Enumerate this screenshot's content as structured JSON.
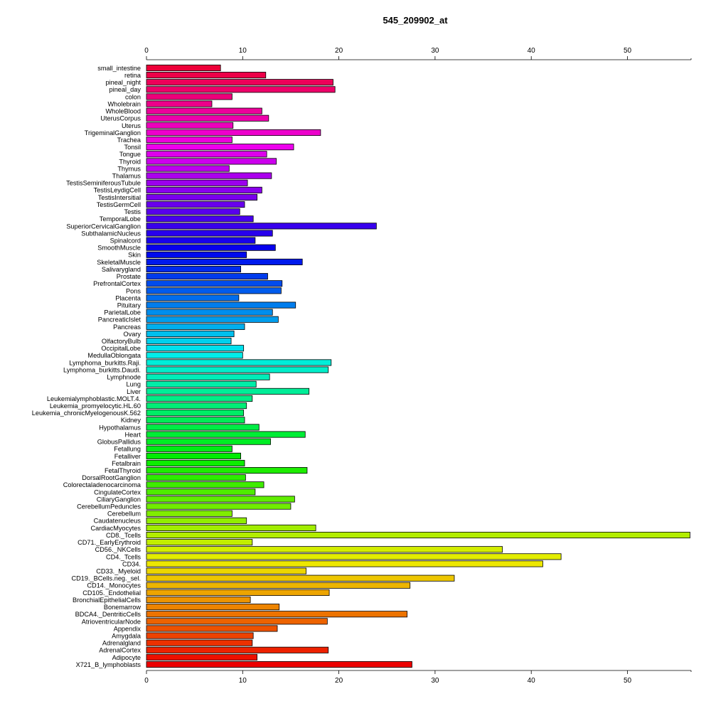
{
  "chart_data": {
    "type": "bar",
    "orientation": "horizontal",
    "title": "545_209902_at",
    "xlabel": "",
    "ylabel": "",
    "xlim": [
      0,
      56
    ],
    "x_ticks": [
      0,
      10,
      20,
      30,
      40,
      50
    ],
    "x_tick_labels": [
      "0",
      "10",
      "20",
      "30",
      "40",
      "50"
    ],
    "axes": [
      "top",
      "bottom"
    ],
    "grid": false,
    "legend": "none",
    "bar_outline_color": "#000000",
    "color_scheme": "rainbow (red → magenta → blue → cyan → green → yellow → orange → red, bottom to top reversed)",
    "categories": [
      "small_intestine",
      "retina",
      "pineal_night",
      "pineal_day",
      "colon",
      "Wholebrain",
      "WholeBlood",
      "UterusCorpus",
      "Uterus",
      "TrigeminalGanglion",
      "Trachea",
      "Tonsil",
      "Tongue",
      "Thyroid",
      "Thymus",
      "Thalamus",
      "TestisSeminiferousTubule",
      "TestisLeydigCell",
      "TestisIntersitial",
      "TestisGermCell",
      "Testis",
      "TemporalLobe",
      "SuperiorCervicalGanglion",
      "SubthalamicNucleus",
      "Spinalcord",
      "SmoothMuscle",
      "Skin",
      "SkeletalMuscle",
      "Salivarygland",
      "Prostate",
      "PrefrontalCortex",
      "Pons",
      "Placenta",
      "Pituitary",
      "ParietalLobe",
      "PancreaticIslet",
      "Pancreas",
      "Ovary",
      "OlfactoryBulb",
      "OccipitalLobe",
      "MedullaOblongata",
      "Lymphoma_burkitts.Raji.",
      "Lymphoma_burkitts.Daudi.",
      "Lymphnode",
      "Lung",
      "Liver",
      "Leukemialymphoblastic.MOLT.4.",
      "Leukemia_promyelocytic.HL.60",
      "Leukemia_chronicMyelogenousK.562",
      "Kidney",
      "Hypothalamus",
      "Heart",
      "GlobusPallidus",
      "Fetallung",
      "Fetalliver",
      "Fetalbrain",
      "FetalThyroid",
      "DorsalRootGanglion",
      "Colorectaladenocarcinoma",
      "CingulateCortex",
      "CiliaryGanglion",
      "CerebellumPeduncles",
      "Cerebellum",
      "Caudatenucleus",
      "CardiacMyocytes",
      "CD8._Tcells",
      "CD71._EarlyErythroid",
      "CD56._NKCells",
      "CD4._Tcells",
      "CD34.",
      "CD33._Myeloid",
      "CD19._BCells.neg._sel.",
      "CD14._Monocytes",
      "CD105._Endothelial",
      "BronchialEpithelialCells",
      "Bonemarrow",
      "BDCA4._DentriticCells",
      "AtrioventricularNode",
      "Appendix",
      "Amygdala",
      "Adrenalgland",
      "AdrenalCortex",
      "Adipocyte",
      "X721_B_lymphoblasts"
    ],
    "values": [
      7.7,
      12.4,
      19.4,
      19.6,
      8.9,
      6.8,
      12.0,
      12.7,
      9.0,
      18.1,
      8.9,
      15.3,
      12.5,
      13.5,
      8.6,
      13.0,
      10.5,
      12.0,
      11.5,
      10.2,
      9.7,
      11.1,
      23.9,
      13.1,
      11.3,
      13.4,
      10.4,
      16.2,
      9.8,
      12.6,
      14.1,
      14.0,
      9.6,
      15.5,
      13.1,
      13.7,
      10.2,
      9.1,
      8.8,
      10.1,
      10.0,
      19.2,
      18.9,
      12.8,
      11.4,
      16.9,
      11.0,
      10.4,
      10.1,
      10.2,
      11.7,
      16.5,
      12.9,
      8.9,
      9.8,
      10.2,
      16.7,
      10.3,
      12.2,
      11.3,
      15.4,
      15.0,
      8.9,
      10.4,
      17.6,
      56.5,
      11.0,
      37.0,
      43.1,
      41.2,
      16.6,
      32.0,
      27.4,
      19.0,
      10.8,
      13.8,
      27.1,
      18.8,
      13.6,
      11.1,
      11.0,
      18.9,
      11.5,
      27.6
    ]
  }
}
